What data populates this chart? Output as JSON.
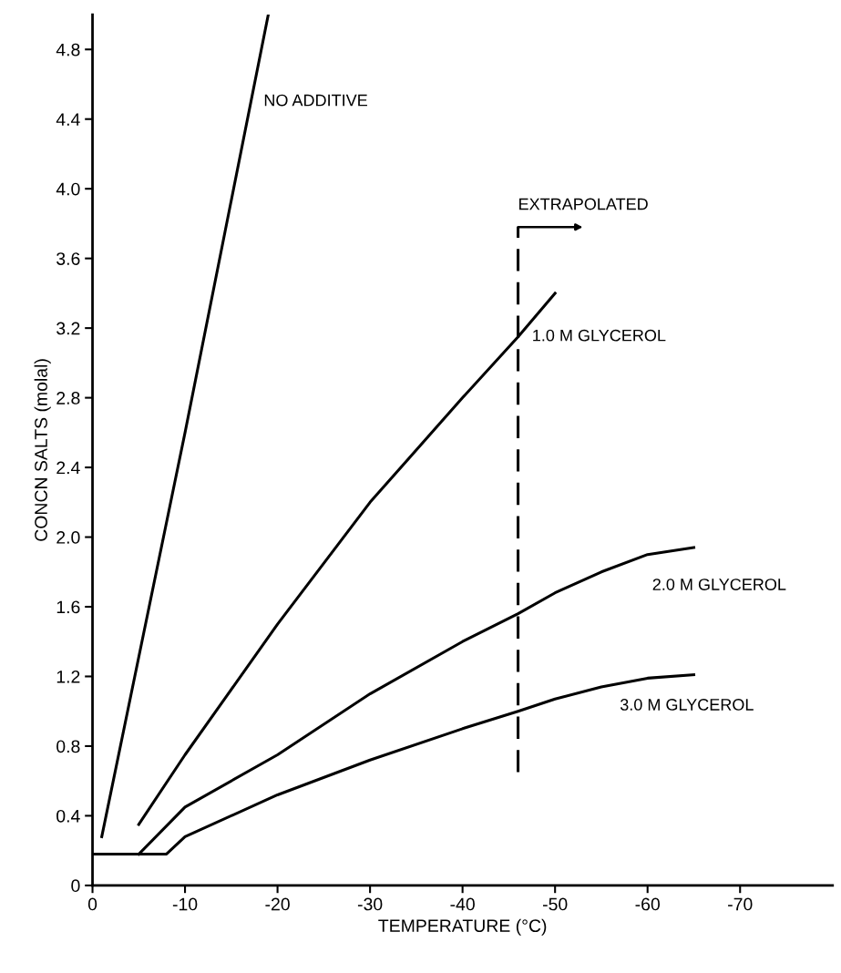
{
  "chart_data": {
    "type": "line",
    "xlabel": "TEMPERATURE (°C)",
    "ylabel": "CONCN SALTS (molal)",
    "xlim": [
      0,
      -80
    ],
    "ylim": [
      0,
      5
    ],
    "xticks": [
      0,
      {
        "value": -10,
        "label": "-10"
      },
      {
        "value": -20,
        "label": "-20"
      },
      {
        "value": -30,
        "label": "-30"
      },
      {
        "value": -40,
        "label": "-40"
      },
      {
        "value": -50,
        "label": "-50"
      },
      {
        "value": -60,
        "label": "-60"
      },
      {
        "value": -70,
        "label": "-70"
      }
    ],
    "yticks": [
      0,
      0.4,
      0.8,
      1.2,
      1.6,
      {
        "value": 2,
        "label": "2.0"
      },
      2.4,
      2.8,
      3.2,
      3.6,
      {
        "value": 4,
        "label": "4.0"
      },
      4.4,
      4.8
    ],
    "grid": false,
    "legend": false,
    "marker": "none",
    "line_style": "solid",
    "series": [
      {
        "name": "NO ADDITIVE",
        "color": "#000000",
        "x": [
          -1,
          -10,
          -19
        ],
        "values": [
          0.28,
          2.6,
          5.0
        ]
      },
      {
        "name": "1.0 M GLYCEROL",
        "color": "#000000",
        "x": [
          -5,
          -10,
          -20,
          -30,
          -40,
          -46,
          -50
        ],
        "values": [
          0.35,
          0.75,
          1.5,
          2.2,
          2.8,
          3.15,
          3.4
        ]
      },
      {
        "name": "2.0 M GLYCEROL",
        "color": "#000000",
        "x": [
          -5,
          -10,
          -20,
          -30,
          -40,
          -46,
          -50,
          -55,
          -60,
          -65
        ],
        "values": [
          0.18,
          0.45,
          0.75,
          1.1,
          1.4,
          1.56,
          1.68,
          1.8,
          1.9,
          1.94
        ]
      },
      {
        "name": "3.0 M GLYCEROL",
        "color": "#000000",
        "x": [
          0,
          -8,
          -10,
          -20,
          -30,
          -40,
          -46,
          -50,
          -55,
          -60,
          -65
        ],
        "values": [
          0.18,
          0.18,
          0.28,
          0.52,
          0.72,
          0.9,
          1.0,
          1.07,
          1.14,
          1.19,
          1.21
        ]
      }
    ],
    "ref_lines": [
      {
        "axis": "x",
        "value": -46,
        "label": "EXTRAPOLATED",
        "line_style": "dashed",
        "color": "#000000"
      }
    ]
  }
}
